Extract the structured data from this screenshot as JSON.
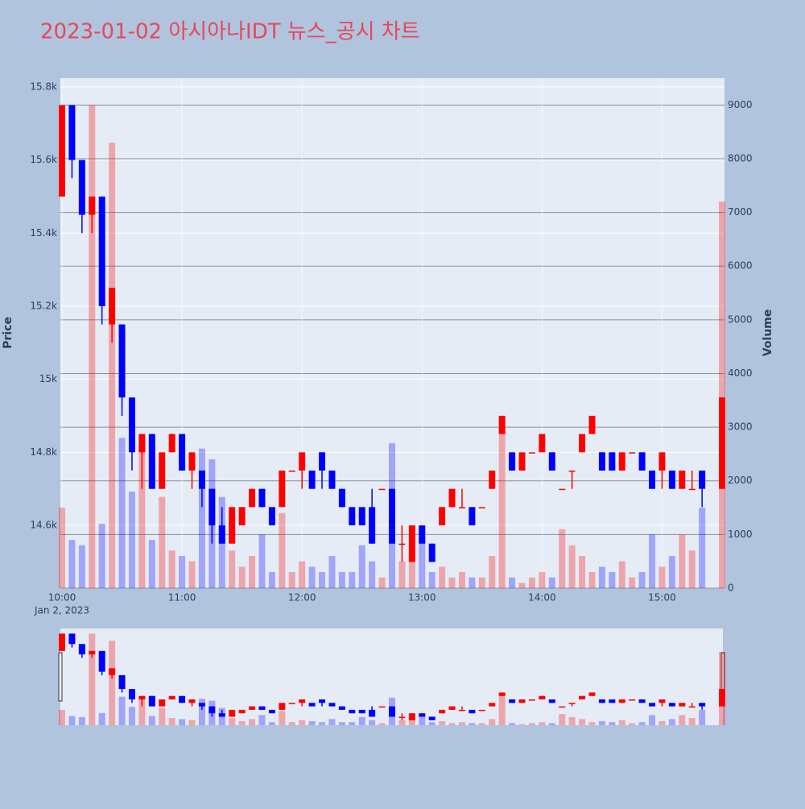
{
  "chart_data": {
    "type": "candlestick",
    "title": "2023-01-02 아시아나IDT 뉴스_공시 차트",
    "ylabel": "Price",
    "y2label": "Volume",
    "x_date_label": "Jan 2, 2023",
    "increasing_color": "#ff0000",
    "decreasing_color": "#0000ff",
    "x": [
      "10:00",
      "10:05",
      "10:10",
      "10:15",
      "10:20",
      "10:25",
      "10:30",
      "10:35",
      "10:40",
      "10:45",
      "10:50",
      "10:55",
      "11:00",
      "11:05",
      "11:10",
      "11:15",
      "11:20",
      "11:25",
      "11:30",
      "11:35",
      "11:40",
      "11:45",
      "11:50",
      "11:55",
      "12:00",
      "12:05",
      "12:10",
      "12:15",
      "12:20",
      "12:25",
      "12:30",
      "12:35",
      "12:40",
      "12:45",
      "12:50",
      "12:55",
      "13:00",
      "13:05",
      "13:10",
      "13:15",
      "13:20",
      "13:25",
      "13:30",
      "13:35",
      "13:40",
      "13:45",
      "13:50",
      "13:55",
      "14:00",
      "14:05",
      "14:10",
      "14:15",
      "14:20",
      "14:25",
      "14:30",
      "14:35",
      "14:40",
      "14:45",
      "14:50",
      "14:55",
      "15:00",
      "15:05",
      "15:10",
      "15:15",
      "15:20",
      "15:30"
    ],
    "open": [
      15500,
      15750,
      15600,
      15450,
      15500,
      15150,
      15150,
      14950,
      14800,
      14850,
      14700,
      14800,
      14850,
      14750,
      14750,
      14700,
      14600,
      14550,
      14600,
      14650,
      14700,
      14650,
      14650,
      14750,
      14750,
      14750,
      14800,
      14750,
      14700,
      14650,
      14650,
      14650,
      14700,
      14700,
      14550,
      14500,
      14600,
      14550,
      14600,
      14650,
      14650,
      14650,
      14650,
      14700,
      14850,
      14800,
      14750,
      14800,
      14800,
      14800,
      14700,
      14750,
      14800,
      14850,
      14800,
      14800,
      14750,
      14800,
      14800,
      14750,
      14750,
      14750,
      14700,
      14700,
      14750,
      14700
    ],
    "high": [
      15750,
      15750,
      15600,
      15500,
      15500,
      15250,
      15150,
      14950,
      14850,
      14850,
      14800,
      14850,
      14850,
      14800,
      14750,
      14700,
      14650,
      14650,
      14650,
      14700,
      14700,
      14650,
      14750,
      14750,
      14800,
      14750,
      14800,
      14750,
      14700,
      14650,
      14650,
      14700,
      14700,
      14700,
      14600,
      14600,
      14600,
      14550,
      14650,
      14700,
      14700,
      14650,
      14650,
      14750,
      14900,
      14800,
      14800,
      14800,
      14850,
      14800,
      14700,
      14750,
      14850,
      14900,
      14800,
      14800,
      14800,
      14800,
      14800,
      14750,
      14800,
      14750,
      14750,
      14750,
      14750,
      14950
    ],
    "low": [
      15500,
      15550,
      15400,
      15400,
      15150,
      15100,
      14900,
      14750,
      14700,
      14700,
      14700,
      14800,
      14750,
      14700,
      14650,
      14550,
      14550,
      14550,
      14600,
      14650,
      14650,
      14600,
      14650,
      14750,
      14700,
      14700,
      14700,
      14700,
      14650,
      14600,
      14600,
      14550,
      14700,
      14550,
      14500,
      14500,
      14550,
      14500,
      14600,
      14650,
      14650,
      14600,
      14650,
      14700,
      14850,
      14750,
      14750,
      14800,
      14800,
      14750,
      14700,
      14700,
      14800,
      14850,
      14750,
      14750,
      14750,
      14800,
      14750,
      14700,
      14700,
      14700,
      14700,
      14700,
      14650,
      14700
    ],
    "close": [
      15750,
      15600,
      15450,
      15500,
      15200,
      15250,
      14950,
      14800,
      14850,
      14700,
      14800,
      14850,
      14750,
      14800,
      14700,
      14600,
      14550,
      14650,
      14650,
      14700,
      14650,
      14600,
      14750,
      14750,
      14800,
      14700,
      14750,
      14700,
      14650,
      14600,
      14600,
      14550,
      14700,
      14550,
      14550,
      14600,
      14550,
      14500,
      14650,
      14700,
      14650,
      14600,
      14650,
      14750,
      14900,
      14750,
      14800,
      14800,
      14850,
      14750,
      14700,
      14750,
      14850,
      14900,
      14750,
      14750,
      14800,
      14800,
      14750,
      14700,
      14800,
      14700,
      14750,
      14700,
      14700,
      14950
    ],
    "volume": [
      1500,
      900,
      800,
      9000,
      1200,
      8300,
      2800,
      1800,
      2700,
      900,
      1700,
      700,
      600,
      500,
      2600,
      2400,
      1700,
      700,
      400,
      600,
      1000,
      300,
      1400,
      300,
      500,
      400,
      300,
      600,
      300,
      300,
      800,
      500,
      200,
      2700,
      500,
      700,
      1100,
      300,
      400,
      200,
      300,
      200,
      200,
      600,
      3000,
      200,
      100,
      200,
      300,
      200,
      1100,
      800,
      600,
      300,
      400,
      300,
      500,
      200,
      300,
      1000,
      400,
      600,
      1000,
      700,
      1500,
      7200
    ],
    "xlim": [
      "10:00",
      "15:30"
    ],
    "xticks": [
      "10:00",
      "11:00",
      "12:00",
      "13:00",
      "14:00",
      "15:00"
    ],
    "ylim": [
      14428,
      15824
    ],
    "yticks": [
      {
        "value": 14600,
        "label": "14.6k"
      },
      {
        "value": 14800,
        "label": "14.8k"
      },
      {
        "value": 15000,
        "label": "15k"
      },
      {
        "value": 15200,
        "label": "15.2k"
      },
      {
        "value": 15400,
        "label": "15.4k"
      },
      {
        "value": 15600,
        "label": "15.6k"
      },
      {
        "value": 15800,
        "label": "15.8k"
      }
    ],
    "y2lim": [
      0,
      9500
    ],
    "y2ticks": [
      0,
      1000,
      2000,
      3000,
      4000,
      5000,
      6000,
      7000,
      8000,
      9000
    ]
  }
}
